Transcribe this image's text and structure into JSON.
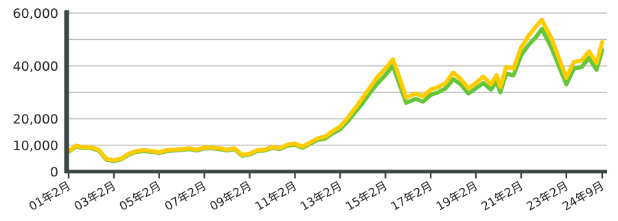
{
  "chart_data": {
    "type": "line",
    "title": "",
    "xlabel": "",
    "ylabel": "",
    "ylim": [
      0,
      60000
    ],
    "grid": true,
    "colors": {
      "series_a": "#66c63a",
      "series_b": "#ffcc00",
      "axis": "#3d4747",
      "grid": "#bdbdbd"
    },
    "y_ticks": [
      {
        "value": 0,
        "label": "0"
      },
      {
        "value": 10000,
        "label": "10,000"
      },
      {
        "value": 20000,
        "label": "20,000"
      },
      {
        "value": 40000,
        "label": "40,000"
      },
      {
        "value": 60000,
        "label": "60,000"
      }
    ],
    "y_gridlines": [
      10000,
      20000,
      30000,
      40000,
      50000,
      60000
    ],
    "x_ticks": [
      "01年2月",
      "03年2月",
      "05年2月",
      "07年2月",
      "09年2月",
      "11年2月",
      "13年2月",
      "15年2月",
      "17年2月",
      "19年2月",
      "21年2月",
      "23年2月",
      "24年9月"
    ],
    "x_tick_dates": [
      "2001-02",
      "2003-02",
      "2005-02",
      "2007-02",
      "2009-02",
      "2011-02",
      "2013-02",
      "2015-02",
      "2017-02",
      "2019-02",
      "2021-02",
      "2023-02",
      "2024-09"
    ],
    "x_range": [
      "2001-02",
      "2024-09"
    ],
    "series": [
      {
        "x": [
          "2001-02",
          "2001-06",
          "2001-09",
          "2002-01",
          "2002-06",
          "2002-10",
          "2003-02",
          "2003-06",
          "2003-10",
          "2004-02",
          "2004-06",
          "2004-10",
          "2005-02",
          "2005-06",
          "2005-10",
          "2006-02",
          "2006-06",
          "2006-10",
          "2007-02",
          "2007-06",
          "2007-10",
          "2008-02",
          "2008-06",
          "2008-10",
          "2009-02",
          "2009-06",
          "2009-10",
          "2010-02",
          "2010-06",
          "2010-10",
          "2011-02",
          "2011-06",
          "2011-10",
          "2012-02",
          "2012-06",
          "2012-10",
          "2013-02",
          "2013-06",
          "2013-10",
          "2014-02",
          "2014-06",
          "2014-10",
          "2015-02",
          "2015-06",
          "2015-09",
          "2016-01",
          "2016-06",
          "2016-10",
          "2017-02",
          "2017-06",
          "2017-10",
          "2018-02",
          "2018-06",
          "2018-10",
          "2019-02",
          "2019-06",
          "2019-10",
          "2020-01",
          "2020-03",
          "2020-06",
          "2020-10",
          "2021-02",
          "2021-03",
          "2021-06",
          "2021-10",
          "2022-01",
          "2022-06",
          "2022-10",
          "2023-02",
          "2023-06",
          "2023-10",
          "2024-02",
          "2024-06",
          "2024-09"
        ],
        "values": [
          7500,
          9500,
          9000,
          9000,
          8000,
          4500,
          4000,
          4700,
          6500,
          7500,
          7800,
          7500,
          7000,
          7800,
          8000,
          8200,
          8500,
          8000,
          8800,
          8800,
          8500,
          8000,
          8500,
          6000,
          6500,
          7800,
          8000,
          9000,
          8500,
          9800,
          10200,
          9000,
          10500,
          12000,
          12500,
          14500,
          16000,
          19000,
          22500,
          26000,
          30000,
          33500,
          36500,
          40000,
          34000,
          26000,
          27500,
          26500,
          29000,
          30000,
          31500,
          35000,
          33000,
          29500,
          31500,
          33500,
          31000,
          34000,
          30000,
          37000,
          36500,
          44000,
          45000,
          48000,
          51000,
          54000,
          47000,
          40000,
          33000,
          39000,
          39500,
          43000,
          38500,
          46000
        ]
      },
      {
        "x": [
          "2001-02",
          "2001-06",
          "2001-09",
          "2002-01",
          "2002-06",
          "2002-10",
          "2003-02",
          "2003-06",
          "2003-10",
          "2004-02",
          "2004-06",
          "2004-10",
          "2005-02",
          "2005-06",
          "2005-10",
          "2006-02",
          "2006-06",
          "2006-10",
          "2007-02",
          "2007-06",
          "2007-10",
          "2008-02",
          "2008-06",
          "2008-10",
          "2009-02",
          "2009-06",
          "2009-10",
          "2010-02",
          "2010-06",
          "2010-10",
          "2011-02",
          "2011-06",
          "2011-10",
          "2012-02",
          "2012-06",
          "2012-10",
          "2013-02",
          "2013-06",
          "2013-10",
          "2014-02",
          "2014-06",
          "2014-10",
          "2015-02",
          "2015-06",
          "2015-09",
          "2016-01",
          "2016-06",
          "2016-10",
          "2017-02",
          "2017-06",
          "2017-10",
          "2018-02",
          "2018-06",
          "2018-10",
          "2019-02",
          "2019-06",
          "2019-10",
          "2020-01",
          "2020-03",
          "2020-06",
          "2020-10",
          "2021-02",
          "2021-03",
          "2021-06",
          "2021-10",
          "2022-01",
          "2022-06",
          "2022-10",
          "2023-02",
          "2023-06",
          "2023-10",
          "2024-02",
          "2024-06",
          "2024-09"
        ],
        "values": [
          7700,
          9800,
          9300,
          9300,
          8300,
          4800,
          4300,
          5000,
          6800,
          7800,
          8100,
          7800,
          7300,
          8100,
          8300,
          8500,
          8800,
          8300,
          9100,
          9100,
          8800,
          8300,
          8800,
          6300,
          6800,
          8100,
          8300,
          9300,
          8800,
          10200,
          10600,
          9400,
          11000,
          12600,
          13200,
          15300,
          17000,
          20300,
          24000,
          28000,
          32000,
          36000,
          39000,
          42500,
          36500,
          28000,
          29500,
          28500,
          31000,
          32000,
          33500,
          37500,
          35000,
          31500,
          33500,
          36000,
          33000,
          36500,
          32000,
          39500,
          39000,
          47000,
          48000,
          51500,
          55000,
          57500,
          50500,
          43000,
          35500,
          41500,
          42000,
          45500,
          41000,
          49000
        ]
      }
    ]
  }
}
